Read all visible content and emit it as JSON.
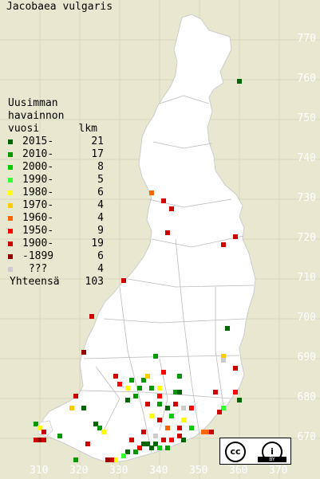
{
  "title": "Jacobaea vulgaris",
  "legend": {
    "header_1": "Uusimman",
    "header_2": "havainnon",
    "header_3": "vuosi",
    "header_count": "lkm",
    "rows": [
      {
        "label": "2015-",
        "count": "21",
        "color": "#006600"
      },
      {
        "label": "2010-",
        "count": "17",
        "color": "#009900"
      },
      {
        "label": "2000-",
        "count": "8",
        "color": "#00cc00"
      },
      {
        "label": "1990-",
        "count": "5",
        "color": "#33ff33"
      },
      {
        "label": "1980-",
        "count": "6",
        "color": "#ffff00"
      },
      {
        "label": "1970-",
        "count": "4",
        "color": "#ffcc00"
      },
      {
        "label": "1960-",
        "count": "4",
        "color": "#ff6600"
      },
      {
        "label": "1950-",
        "count": "9",
        "color": "#ff0000"
      },
      {
        "label": "1900-",
        "count": "19",
        "color": "#cc0000"
      },
      {
        "label": "-1899",
        "count": "6",
        "color": "#990000"
      },
      {
        "label": " ???",
        "count": "4",
        "color": "#cccccc"
      }
    ],
    "total_label": "Yhteensä",
    "total_count": "103"
  },
  "y_axis_labels": [
    "770",
    "760",
    "750",
    "740",
    "730",
    "720",
    "710",
    "700",
    "690",
    "680",
    "670"
  ],
  "x_axis_labels": [
    "310",
    "320",
    "330",
    "340",
    "350",
    "360",
    "370"
  ],
  "license": {
    "cc": "cc",
    "attribution": "i",
    "by": "BY"
  },
  "colors": {
    "land": "#ffffff",
    "sea": "#e8e8d0",
    "grid": "#d0d0b8",
    "border": "#bbbbbb"
  },
  "markers": [
    {
      "e": 360,
      "n": 759,
      "c": "#006600"
    },
    {
      "e": 338,
      "n": 731,
      "c": "#ff6600"
    },
    {
      "e": 341,
      "n": 729,
      "c": "#cc0000"
    },
    {
      "e": 343,
      "n": 727,
      "c": "#cc0000"
    },
    {
      "e": 342,
      "n": 721,
      "c": "#cc0000"
    },
    {
      "e": 356,
      "n": 718,
      "c": "#cc0000"
    },
    {
      "e": 359,
      "n": 720,
      "c": "#cc0000"
    },
    {
      "e": 331,
      "n": 709,
      "c": "#cc0000"
    },
    {
      "e": 323,
      "n": 700,
      "c": "#cc0000"
    },
    {
      "e": 321,
      "n": 691,
      "c": "#990000"
    },
    {
      "e": 339,
      "n": 690,
      "c": "#009900"
    },
    {
      "e": 357,
      "n": 697,
      "c": "#006600"
    },
    {
      "e": 356,
      "n": 690,
      "c": "#ffcc00"
    },
    {
      "e": 356,
      "n": 689,
      "c": "#cccccc"
    },
    {
      "e": 359,
      "n": 687,
      "c": "#cc0000"
    },
    {
      "e": 329,
      "n": 685,
      "c": "#cc0000"
    },
    {
      "e": 330,
      "n": 683,
      "c": "#ff0000"
    },
    {
      "e": 333,
      "n": 684,
      "c": "#009900"
    },
    {
      "e": 336,
      "n": 684,
      "c": "#009900"
    },
    {
      "e": 337,
      "n": 685,
      "c": "#ffcc00"
    },
    {
      "e": 341,
      "n": 686,
      "c": "#ff0000"
    },
    {
      "e": 345,
      "n": 685,
      "c": "#009900"
    },
    {
      "e": 332,
      "n": 682,
      "c": "#ffff00"
    },
    {
      "e": 335,
      "n": 682,
      "c": "#009900"
    },
    {
      "e": 338,
      "n": 682,
      "c": "#009900"
    },
    {
      "e": 340,
      "n": 682,
      "c": "#ffff00"
    },
    {
      "e": 344,
      "n": 681,
      "c": "#009900"
    },
    {
      "e": 345,
      "n": 681,
      "c": "#006600"
    },
    {
      "e": 354,
      "n": 681,
      "c": "#cc0000"
    },
    {
      "e": 359,
      "n": 681,
      "c": "#ff0000"
    },
    {
      "e": 360,
      "n": 679,
      "c": "#006600"
    },
    {
      "e": 319,
      "n": 680,
      "c": "#cc0000"
    },
    {
      "e": 318,
      "n": 677,
      "c": "#ffcc00"
    },
    {
      "e": 321,
      "n": 677,
      "c": "#006600"
    },
    {
      "e": 332,
      "n": 679,
      "c": "#006600"
    },
    {
      "e": 337,
      "n": 678,
      "c": "#cc0000"
    },
    {
      "e": 340,
      "n": 678,
      "c": "#009900"
    },
    {
      "e": 344,
      "n": 678,
      "c": "#cc0000"
    },
    {
      "e": 346,
      "n": 677,
      "c": "#cccccc"
    },
    {
      "e": 348,
      "n": 677,
      "c": "#ff0000"
    },
    {
      "e": 356,
      "n": 677,
      "c": "#33ff33"
    },
    {
      "e": 355,
      "n": 676,
      "c": "#cc0000"
    },
    {
      "e": 342,
      "n": 677,
      "c": "#006600"
    },
    {
      "e": 343,
      "n": 675,
      "c": "#00cc00"
    },
    {
      "e": 338,
      "n": 675,
      "c": "#ffff00"
    },
    {
      "e": 340,
      "n": 674,
      "c": "#cc0000"
    },
    {
      "e": 346,
      "n": 674,
      "c": "#ffff00"
    },
    {
      "e": 324,
      "n": 673,
      "c": "#006600"
    },
    {
      "e": 325,
      "n": 672,
      "c": "#009900"
    },
    {
      "e": 326,
      "n": 671,
      "c": "#ffff00"
    },
    {
      "e": 342,
      "n": 672,
      "c": "#ff6600"
    },
    {
      "e": 345,
      "n": 672,
      "c": "#cc0000"
    },
    {
      "e": 348,
      "n": 672,
      "c": "#00cc00"
    },
    {
      "e": 351,
      "n": 671,
      "c": "#ff6600"
    },
    {
      "e": 352,
      "n": 671,
      "c": "#ff6600"
    },
    {
      "e": 353,
      "n": 671,
      "c": "#cc0000"
    },
    {
      "e": 336,
      "n": 671,
      "c": "#cc0000"
    },
    {
      "e": 339,
      "n": 670,
      "c": "#cccccc"
    },
    {
      "e": 341,
      "n": 669,
      "c": "#cc0000"
    },
    {
      "e": 343,
      "n": 669,
      "c": "#ff0000"
    },
    {
      "e": 345,
      "n": 670,
      "c": "#cc0000"
    },
    {
      "e": 346,
      "n": 669,
      "c": "#006600"
    },
    {
      "e": 333,
      "n": 669,
      "c": "#cc0000"
    },
    {
      "e": 336,
      "n": 668,
      "c": "#006600"
    },
    {
      "e": 337,
      "n": 668,
      "c": "#006600"
    },
    {
      "e": 338,
      "n": 667,
      "c": "#006600"
    },
    {
      "e": 339,
      "n": 668,
      "c": "#006600"
    },
    {
      "e": 340,
      "n": 667,
      "c": "#00cc00"
    },
    {
      "e": 342,
      "n": 667,
      "c": "#009900"
    },
    {
      "e": 335,
      "n": 667,
      "c": "#ff0000"
    },
    {
      "e": 334,
      "n": 666,
      "c": "#009900"
    },
    {
      "e": 332,
      "n": 666,
      "c": "#006600"
    },
    {
      "e": 331,
      "n": 665,
      "c": "#33ff33"
    },
    {
      "e": 329,
      "n": 664,
      "c": "#ffff00"
    },
    {
      "e": 328,
      "n": 664,
      "c": "#cc0000"
    },
    {
      "e": 327,
      "n": 664,
      "c": "#990000"
    },
    {
      "e": 319,
      "n": 664,
      "c": "#009900"
    },
    {
      "e": 309,
      "n": 673,
      "c": "#009900"
    },
    {
      "e": 310,
      "n": 672,
      "c": "#ffff00"
    },
    {
      "e": 311,
      "n": 671,
      "c": "#cc0000"
    },
    {
      "e": 309,
      "n": 669,
      "c": "#cc0000"
    },
    {
      "e": 310,
      "n": 669,
      "c": "#990000"
    },
    {
      "e": 311,
      "n": 669,
      "c": "#cc0000"
    },
    {
      "e": 315,
      "n": 670,
      "c": "#009900"
    },
    {
      "e": 322,
      "n": 668,
      "c": "#cc0000"
    },
    {
      "e": 340,
      "n": 680,
      "c": "#ff0000"
    },
    {
      "e": 334,
      "n": 680,
      "c": "#009900"
    }
  ]
}
